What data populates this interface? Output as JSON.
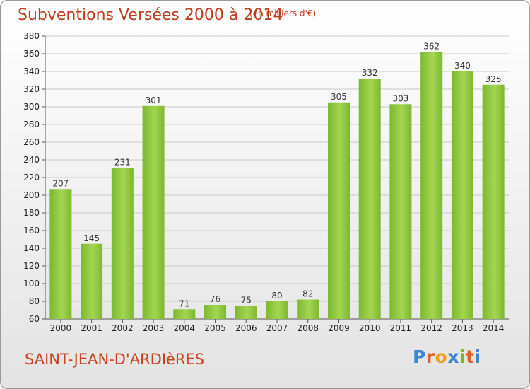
{
  "header": {
    "title": "Subventions Versées 2000 à 2014",
    "subtitle": "(en milliers d'€)"
  },
  "footer": {
    "commune": "SAINT-JEAN-D'ARDIèRES",
    "logo_text": "Proxiti",
    "logo_colors": [
      "#3c86cf",
      "#e06020",
      "#f0a020",
      "#3c86cf",
      "#7fb12a",
      "#e06020"
    ]
  },
  "chart_data": {
    "type": "bar",
    "categories": [
      "2000",
      "2001",
      "2002",
      "2003",
      "2004",
      "2005",
      "2006",
      "2007",
      "2008",
      "2009",
      "2010",
      "2011",
      "2012",
      "2013",
      "2014"
    ],
    "values": [
      207,
      145,
      231,
      301,
      71,
      76,
      75,
      80,
      82,
      305,
      332,
      303,
      362,
      340,
      325
    ],
    "ylim": [
      60,
      380
    ],
    "yticks": [
      60,
      80,
      100,
      120,
      140,
      160,
      180,
      200,
      220,
      240,
      260,
      280,
      300,
      320,
      340,
      360,
      380
    ],
    "grid": true,
    "bar_color": "#7cb82f",
    "bar_highlight": "#a4d650",
    "gridline_color": "#c8c8c8"
  }
}
